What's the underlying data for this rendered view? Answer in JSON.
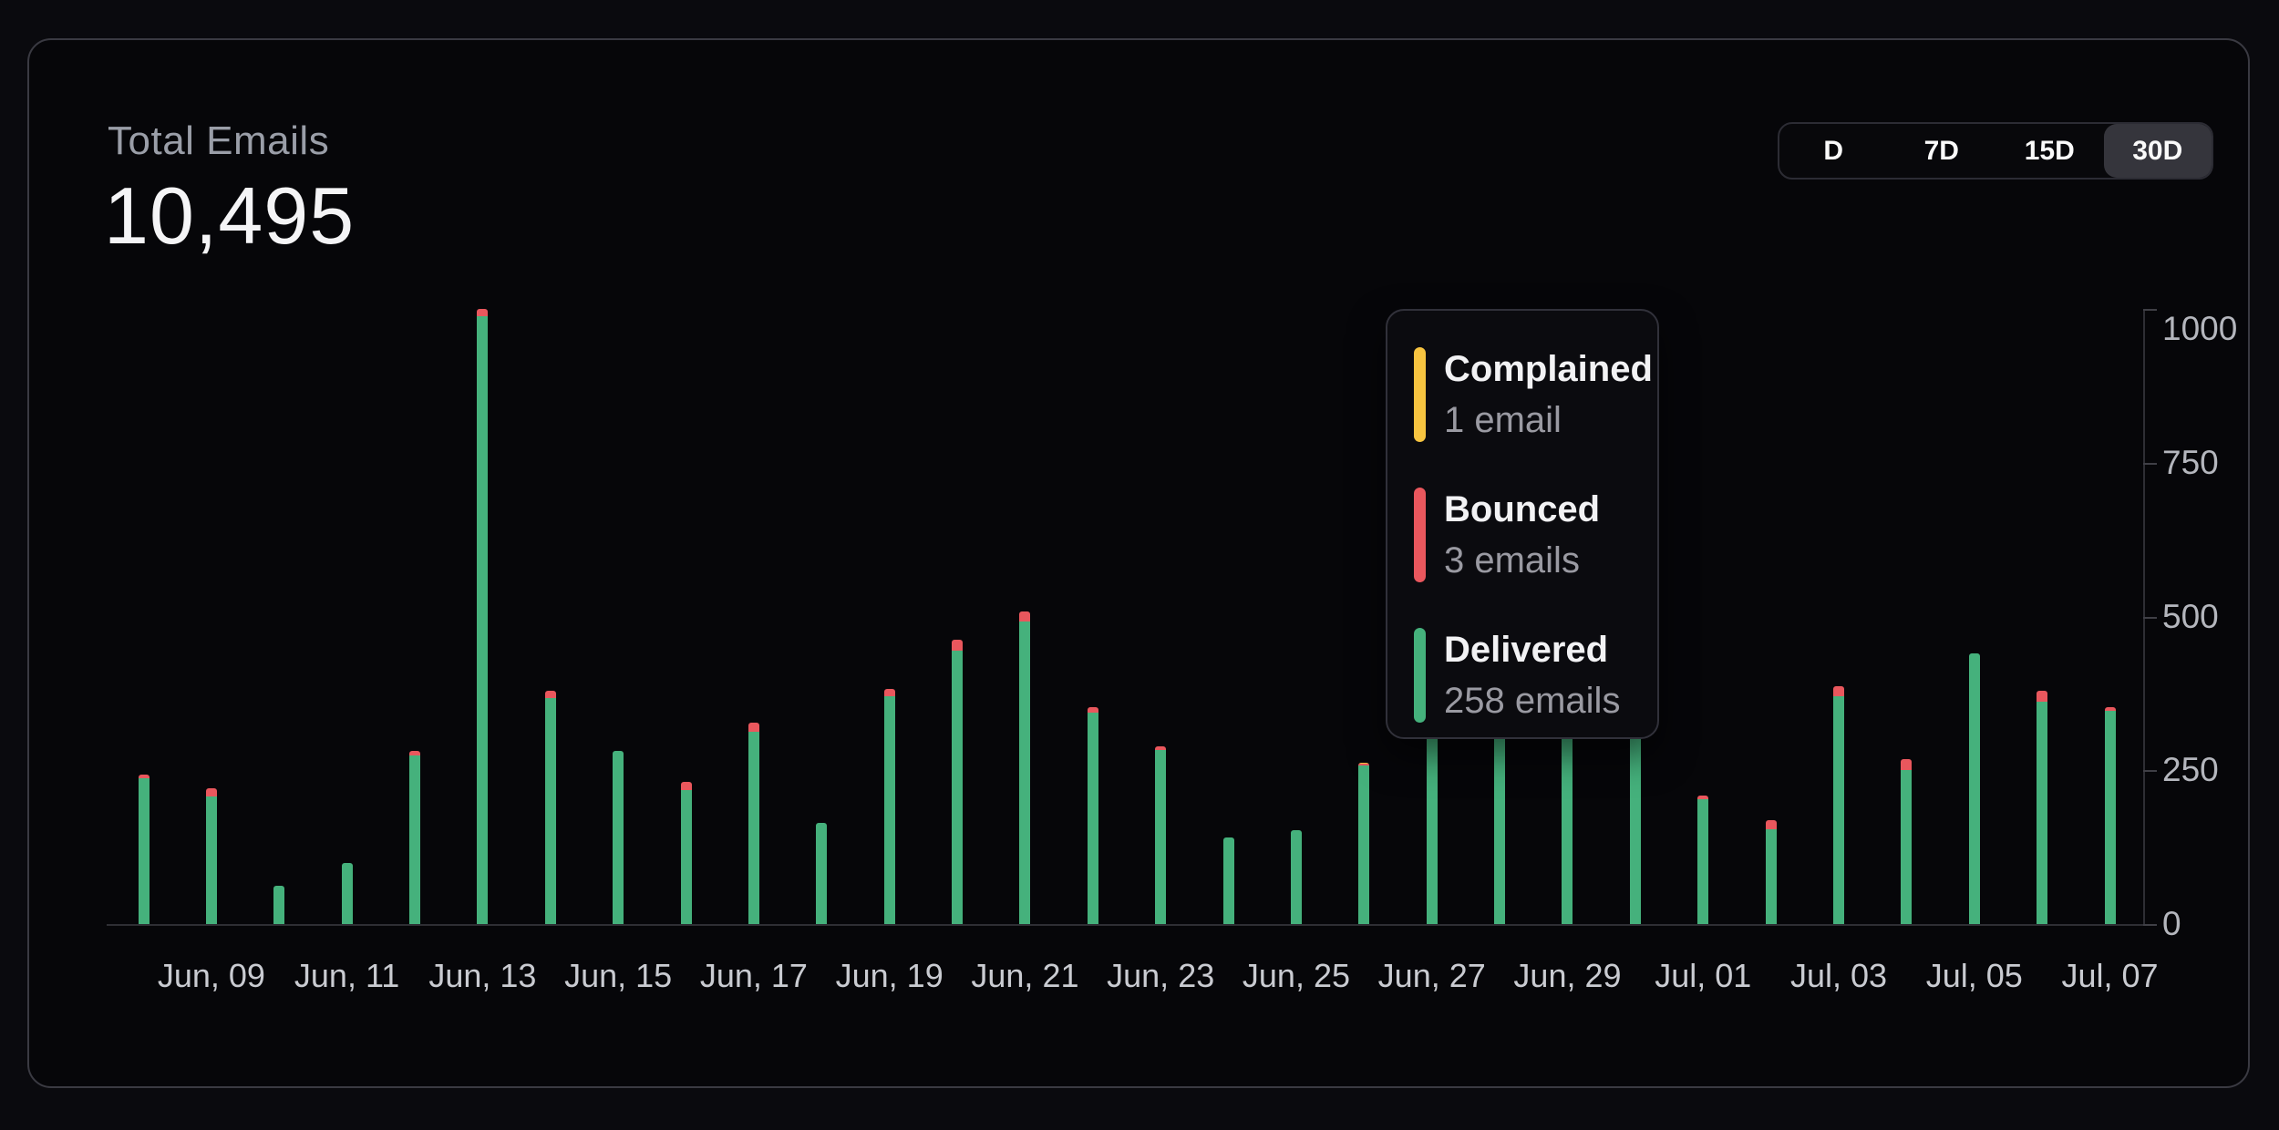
{
  "header": {
    "title": "Total Emails",
    "value": "10,495"
  },
  "range_selector": {
    "options": [
      {
        "label": "D",
        "selected": false
      },
      {
        "label": "7D",
        "selected": false
      },
      {
        "label": "15D",
        "selected": false
      },
      {
        "label": "30D",
        "selected": true
      }
    ]
  },
  "tooltip": {
    "entries": [
      {
        "label": "Complained",
        "value": "1 email",
        "color": "#f7c440"
      },
      {
        "label": "Bounced",
        "value": "3 emails",
        "color": "#e9575d"
      },
      {
        "label": "Delivered",
        "value": "258 emails",
        "color": "#45b17c"
      }
    ]
  },
  "chart_data": {
    "type": "bar",
    "stacked": true,
    "title": "Total Emails",
    "categories": [
      "Jun, 08",
      "Jun, 09",
      "Jun, 10",
      "Jun, 11",
      "Jun, 12",
      "Jun, 13",
      "Jun, 14",
      "Jun, 15",
      "Jun, 16",
      "Jun, 17",
      "Jun, 18",
      "Jun, 19",
      "Jun, 20",
      "Jun, 21",
      "Jun, 22",
      "Jun, 23",
      "Jun, 24",
      "Jun, 25",
      "Jun, 26",
      "Jun, 27",
      "Jun, 28",
      "Jun, 29",
      "Jun, 30",
      "Jul, 01",
      "Jul, 02",
      "Jul, 03",
      "Jul, 04",
      "Jul, 05",
      "Jul, 06",
      "Jul, 07"
    ],
    "series": [
      {
        "name": "Delivered",
        "color": "#45b17c",
        "values": [
          237,
          208,
          62,
          99,
          274,
          988,
          367,
          282,
          218,
          312,
          164,
          370,
          444,
          492,
          343,
          283,
          141,
          153,
          258,
          600,
          635,
          594,
          586,
          203,
          154,
          371,
          250,
          440,
          362,
          347
        ]
      },
      {
        "name": "Bounced",
        "color": "#e9575d",
        "values": [
          6,
          13,
          0,
          0,
          7,
          12,
          12,
          0,
          13,
          15,
          0,
          12,
          18,
          16,
          9,
          6,
          0,
          0,
          3,
          10,
          10,
          8,
          9,
          6,
          15,
          16,
          18,
          0,
          17,
          6
        ]
      },
      {
        "name": "Complained",
        "color": "#f7c440",
        "values": [
          0,
          0,
          0,
          0,
          0,
          0,
          0,
          0,
          0,
          0,
          0,
          0,
          0,
          0,
          0,
          0,
          0,
          0,
          1,
          0,
          0,
          0,
          0,
          0,
          0,
          0,
          0,
          0,
          0,
          0
        ]
      }
    ],
    "x_tick_labels": [
      "Jun, 09",
      "Jun, 11",
      "Jun, 13",
      "Jun, 15",
      "Jun, 17",
      "Jun, 19",
      "Jun, 21",
      "Jun, 23",
      "Jun, 25",
      "Jun, 27",
      "Jun, 29",
      "Jul, 01",
      "Jul, 03",
      "Jul, 05",
      "Jul, 07"
    ],
    "ylim": [
      0,
      1000
    ],
    "yticks": [
      0,
      250,
      500,
      750,
      1000
    ],
    "grid": false,
    "legend_position": "tooltip",
    "hovered_category": "Jun, 26"
  },
  "colors": {
    "page_bg": "#0a0a0e",
    "card_bg": "#060609",
    "card_border": "#3a3a42",
    "pill_bg": "#35353c",
    "axis": "#2e2e34"
  }
}
